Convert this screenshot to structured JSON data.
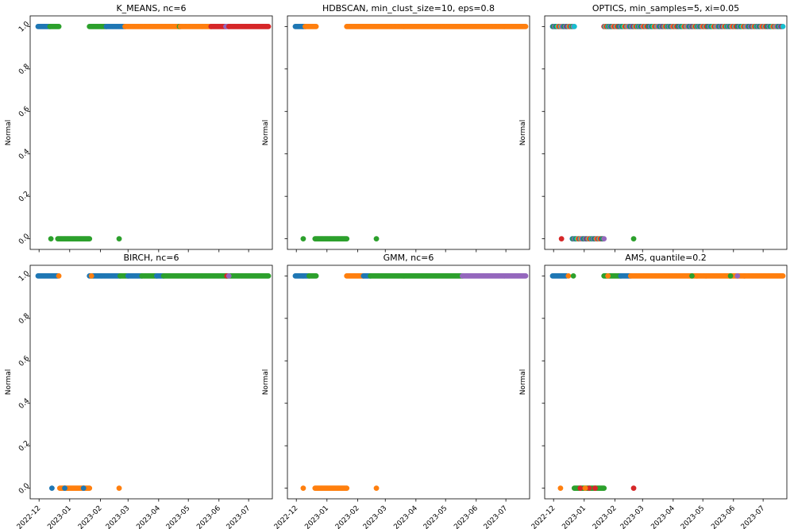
{
  "colors": {
    "c0": "#1f77b4",
    "c1": "#ff7f0e",
    "c2": "#2ca02c",
    "c3": "#d62728",
    "c4": "#9467bd",
    "c5": "#17becf"
  },
  "chart_data": [
    {
      "type": "scatter",
      "title": "K_MEANS, nc=6",
      "ylabel": "Normal",
      "xlim": [
        "2022-11-22",
        "2023-07-25"
      ],
      "ylim": [
        -0.05,
        1.05
      ],
      "yticks": [
        "0.0",
        "0.2",
        "0.4",
        "0.6",
        "0.8",
        "1.0"
      ],
      "xticks": [],
      "segments": [
        {
          "y": 1,
          "x0": "2022-11-30",
          "x1": "2022-12-12",
          "color": "c0"
        },
        {
          "y": 1,
          "x0": "2022-12-12",
          "x1": "2022-12-21",
          "color": "c2"
        },
        {
          "y": 1,
          "x0": "2023-01-21",
          "x1": "2023-02-07",
          "color": "c2"
        },
        {
          "y": 1,
          "x0": "2023-02-07",
          "x1": "2023-02-26",
          "color": "c0"
        },
        {
          "y": 1,
          "x0": "2023-02-26",
          "x1": "2023-04-22",
          "color": "c1"
        },
        {
          "y": 1,
          "x0": "2023-04-22",
          "x1": "2023-04-23",
          "color": "c2"
        },
        {
          "y": 1,
          "x0": "2023-04-23",
          "x1": "2023-05-24",
          "color": "c1"
        },
        {
          "y": 1,
          "x0": "2023-05-24",
          "x1": "2023-06-08",
          "color": "c3"
        },
        {
          "y": 1,
          "x0": "2023-06-08",
          "x1": "2023-06-11",
          "color": "c4"
        },
        {
          "y": 1,
          "x0": "2023-06-11",
          "x1": "2023-07-21",
          "color": "c3"
        },
        {
          "y": 0,
          "x0": "2022-12-20",
          "x1": "2023-01-21",
          "color": "c2"
        }
      ],
      "points": [
        {
          "x": "2022-12-13",
          "y": 0,
          "color": "c2"
        },
        {
          "x": "2023-02-20",
          "y": 0,
          "color": "c2"
        }
      ]
    },
    {
      "type": "scatter",
      "title": "HDBSCAN, min_clust_size=10, eps=0.8",
      "ylabel": "Normal",
      "xlim": [
        "2022-11-22",
        "2023-07-25"
      ],
      "ylim": [
        -0.05,
        1.05
      ],
      "yticks": [],
      "xticks": [],
      "segments": [
        {
          "y": 1,
          "x0": "2022-11-30",
          "x1": "2022-12-10",
          "color": "c0"
        },
        {
          "y": 1,
          "x0": "2022-12-10",
          "x1": "2022-12-21",
          "color": "c1"
        },
        {
          "y": 1,
          "x0": "2023-01-21",
          "x1": "2023-07-21",
          "color": "c1"
        },
        {
          "y": 0,
          "x0": "2022-12-20",
          "x1": "2023-01-21",
          "color": "c2"
        }
      ],
      "points": [
        {
          "x": "2022-12-08",
          "y": 0,
          "color": "c2"
        },
        {
          "x": "2023-02-20",
          "y": 0,
          "color": "c2"
        }
      ]
    },
    {
      "type": "scatter",
      "title": "OPTICS, min_samples=5, xi=0.05",
      "ylabel": "Normal",
      "xlim": [
        "2022-11-22",
        "2023-07-25"
      ],
      "ylim": [
        -0.05,
        1.05
      ],
      "yticks": [],
      "xticks": [],
      "segments": [
        {
          "y": 1,
          "x0": "2022-11-30",
          "x1": "2022-12-21",
          "color": "mix"
        },
        {
          "y": 1,
          "x0": "2023-01-21",
          "x1": "2023-07-21",
          "color": "mix"
        },
        {
          "y": 0,
          "x0": "2022-12-20",
          "x1": "2023-01-21",
          "color": "mix"
        }
      ],
      "points": [
        {
          "x": "2022-12-22",
          "y": 1,
          "color": "c5"
        },
        {
          "x": "2022-12-09",
          "y": 0,
          "color": "c3"
        },
        {
          "x": "2023-02-20",
          "y": 0,
          "color": "c2"
        }
      ]
    },
    {
      "type": "scatter",
      "title": "BIRCH, nc=6",
      "ylabel": "Normal",
      "xlim": [
        "2022-11-22",
        "2023-07-25"
      ],
      "ylim": [
        -0.05,
        1.05
      ],
      "yticks": [
        "0.0",
        "0.2",
        "0.4",
        "0.6",
        "0.8",
        "1.0"
      ],
      "xticks": [
        "2022-12",
        "2023-01",
        "2023-02",
        "2023-03",
        "2023-04",
        "2023-05",
        "2023-06",
        "2023-07"
      ],
      "segments": [
        {
          "y": 1,
          "x0": "2022-11-30",
          "x1": "2022-12-20",
          "color": "c0"
        },
        {
          "y": 1,
          "x0": "2023-01-21",
          "x1": "2023-02-21",
          "color": "c0"
        },
        {
          "y": 1,
          "x0": "2023-02-21",
          "x1": "2023-03-01",
          "color": "c2"
        },
        {
          "y": 1,
          "x0": "2023-03-01",
          "x1": "2023-03-15",
          "color": "c0"
        },
        {
          "y": 1,
          "x0": "2023-03-15",
          "x1": "2023-03-30",
          "color": "c2"
        },
        {
          "y": 1,
          "x0": "2023-03-30",
          "x1": "2023-04-06",
          "color": "c0"
        },
        {
          "y": 1,
          "x0": "2023-04-06",
          "x1": "2023-07-21",
          "color": "c2"
        },
        {
          "y": 0,
          "x0": "2022-12-22",
          "x1": "2023-01-21",
          "color": "c1"
        }
      ],
      "points": [
        {
          "x": "2022-12-21",
          "y": 1,
          "color": "c1"
        },
        {
          "x": "2023-01-23",
          "y": 1,
          "color": "c1"
        },
        {
          "x": "2023-06-09",
          "y": 1,
          "color": "c3"
        },
        {
          "x": "2023-06-11",
          "y": 1,
          "color": "c4"
        },
        {
          "x": "2022-12-14",
          "y": 0,
          "color": "c0"
        },
        {
          "x": "2022-12-27",
          "y": 0,
          "color": "c0"
        },
        {
          "x": "2023-01-15",
          "y": 0,
          "color": "c0"
        },
        {
          "x": "2023-02-20",
          "y": 0,
          "color": "c1"
        }
      ]
    },
    {
      "type": "scatter",
      "title": "GMM, nc=6",
      "ylabel": "Normal",
      "xlim": [
        "2022-11-22",
        "2023-07-25"
      ],
      "ylim": [
        -0.05,
        1.05
      ],
      "yticks": [],
      "xticks": [
        "2022-12",
        "2023-01",
        "2023-02",
        "2023-03",
        "2023-04",
        "2023-05",
        "2023-06",
        "2023-07"
      ],
      "segments": [
        {
          "y": 1,
          "x0": "2022-11-30",
          "x1": "2022-12-14",
          "color": "c0"
        },
        {
          "y": 1,
          "x0": "2022-12-14",
          "x1": "2022-12-21",
          "color": "c2"
        },
        {
          "y": 1,
          "x0": "2023-01-21",
          "x1": "2023-02-07",
          "color": "c1"
        },
        {
          "y": 1,
          "x0": "2023-02-07",
          "x1": "2023-02-14",
          "color": "c0"
        },
        {
          "y": 1,
          "x0": "2023-02-14",
          "x1": "2023-05-18",
          "color": "c2"
        },
        {
          "y": 1,
          "x0": "2023-05-18",
          "x1": "2023-07-21",
          "color": "c4"
        },
        {
          "y": 0,
          "x0": "2022-12-20",
          "x1": "2023-01-21",
          "color": "c1"
        }
      ],
      "points": [
        {
          "x": "2022-12-08",
          "y": 0,
          "color": "c1"
        },
        {
          "x": "2023-02-20",
          "y": 0,
          "color": "c1"
        }
      ]
    },
    {
      "type": "scatter",
      "title": "AMS, quantile=0.2",
      "ylabel": "Normal",
      "xlim": [
        "2022-11-22",
        "2023-07-25"
      ],
      "ylim": [
        -0.05,
        1.05
      ],
      "yticks": [],
      "xticks": [
        "2022-12",
        "2023-01",
        "2023-02",
        "2023-03",
        "2023-04",
        "2023-05",
        "2023-06",
        "2023-07"
      ],
      "segments": [
        {
          "y": 1,
          "x0": "2022-11-30",
          "x1": "2022-12-14",
          "color": "c0"
        },
        {
          "y": 1,
          "x0": "2023-01-21",
          "x1": "2023-02-07",
          "color": "c2"
        },
        {
          "y": 1,
          "x0": "2023-02-07",
          "x1": "2023-02-17",
          "color": "c0"
        },
        {
          "y": 1,
          "x0": "2023-02-17",
          "x1": "2023-04-25",
          "color": "c1"
        },
        {
          "y": 1,
          "x0": "2023-04-25",
          "x1": "2023-05-28",
          "color": "c1"
        },
        {
          "y": 1,
          "x0": "2023-05-28",
          "x1": "2023-06-12",
          "color": "c1"
        },
        {
          "y": 1,
          "x0": "2023-06-12",
          "x1": "2023-07-21",
          "color": "c1"
        },
        {
          "y": 0,
          "x0": "2022-12-22",
          "x1": "2023-01-21",
          "color": "c2"
        }
      ],
      "points": [
        {
          "x": "2022-12-16",
          "y": 1,
          "color": "c1"
        },
        {
          "x": "2022-12-21",
          "y": 1,
          "color": "c2"
        },
        {
          "x": "2023-01-25",
          "y": 1,
          "color": "c1"
        },
        {
          "x": "2023-04-20",
          "y": 1,
          "color": "c2"
        },
        {
          "x": "2023-05-29",
          "y": 1,
          "color": "c2"
        },
        {
          "x": "2023-06-05",
          "y": 1,
          "color": "c4"
        },
        {
          "x": "2022-12-08",
          "y": 0,
          "color": "c1"
        },
        {
          "x": "2022-12-28",
          "y": 0,
          "color": "c3"
        },
        {
          "x": "2023-01-06",
          "y": 0,
          "color": "c3"
        },
        {
          "x": "2023-01-12",
          "y": 0,
          "color": "c3"
        },
        {
          "x": "2023-01-02",
          "y": 0,
          "color": "c1"
        },
        {
          "x": "2023-02-20",
          "y": 0,
          "color": "c3"
        }
      ]
    }
  ]
}
